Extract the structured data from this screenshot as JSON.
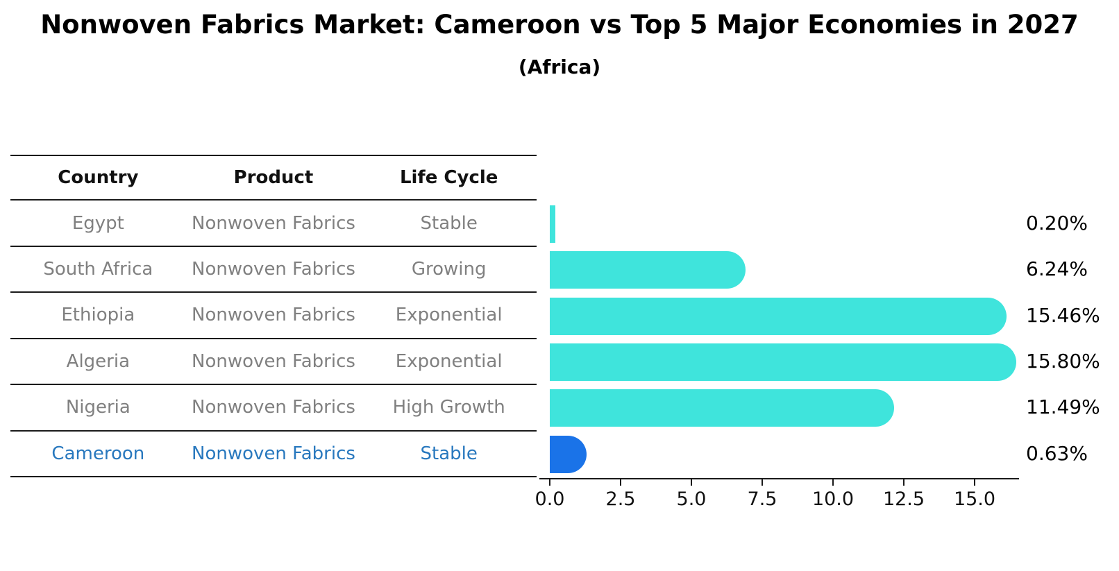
{
  "title": "Nonwoven Fabrics Market: Cameroon vs Top 5 Major Economies in 2027",
  "subtitle": "(Africa)",
  "table": {
    "headers": [
      "Country",
      "Product",
      "Life Cycle"
    ],
    "rows": [
      {
        "country": "Egypt",
        "product": "Nonwoven Fabrics",
        "life_cycle": "Stable",
        "highlight": false
      },
      {
        "country": "South Africa",
        "product": "Nonwoven Fabrics",
        "life_cycle": "Growing",
        "highlight": false
      },
      {
        "country": "Ethiopia",
        "product": "Nonwoven Fabrics",
        "life_cycle": "Exponential",
        "highlight": false
      },
      {
        "country": "Algeria",
        "product": "Nonwoven Fabrics",
        "life_cycle": "Exponential",
        "highlight": false
      },
      {
        "country": "Nigeria",
        "product": "Nonwoven Fabrics",
        "life_cycle": "High Growth",
        "highlight": false
      },
      {
        "country": "Cameroon",
        "product": "Nonwoven Fabrics",
        "life_cycle": "Stable",
        "highlight": true
      }
    ]
  },
  "chart_data": {
    "type": "bar",
    "orientation": "horizontal",
    "title": "Nonwoven Fabrics Market: Cameroon vs Top 5 Major Economies in 2027",
    "subtitle": "(Africa)",
    "categories": [
      "Egypt",
      "South Africa",
      "Ethiopia",
      "Algeria",
      "Nigeria",
      "Cameroon"
    ],
    "values": [
      0.2,
      6.24,
      15.46,
      15.8,
      11.49,
      0.63
    ],
    "value_labels": [
      "0.20%",
      "6.24%",
      "15.46%",
      "15.80%",
      "11.49%",
      "0.63%"
    ],
    "x_ticks": [
      "0.0",
      "2.5",
      "5.0",
      "7.5",
      "10.0",
      "12.5",
      "15.0"
    ],
    "xlim": [
      0,
      16.5
    ],
    "grid": false,
    "legend": false,
    "bar_color": "#3fe4dc",
    "highlight_color": "#1a73e8",
    "highlight_index": 5,
    "highlight_text_color": "#2878be"
  }
}
